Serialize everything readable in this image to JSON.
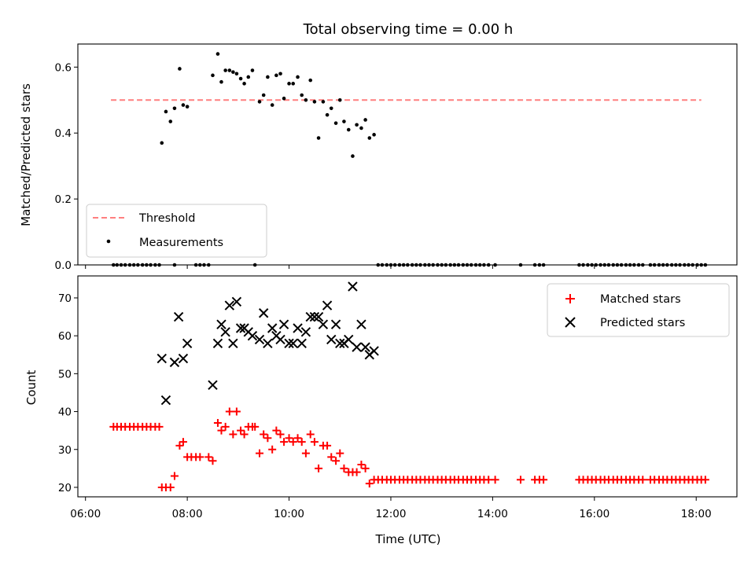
{
  "chart_data": {
    "title": "Total observing time = 0.00 h",
    "xlabel": "Time (UTC)",
    "x_unit": "hours UTC",
    "xlim": [
      5.85,
      18.8
    ],
    "xticks": [
      {
        "value": 6,
        "label": "06:00"
      },
      {
        "value": 8,
        "label": "08:00"
      },
      {
        "value": 10,
        "label": "10:00"
      },
      {
        "value": 12,
        "label": "12:00"
      },
      {
        "value": 14,
        "label": "14:00"
      },
      {
        "value": 16,
        "label": "16:00"
      },
      {
        "value": 18,
        "label": "18:00"
      }
    ],
    "panels": [
      {
        "type": "scatter",
        "ylabel": "Matched/Predicted stars",
        "ylim": [
          0,
          0.67
        ],
        "yticks": [
          {
            "value": 0.0,
            "label": "0.0"
          },
          {
            "value": 0.2,
            "label": "0.2"
          },
          {
            "value": 0.4,
            "label": "0.4"
          },
          {
            "value": 0.6,
            "label": "0.6"
          }
        ],
        "legend": {
          "placement": "lower-left",
          "entries": [
            "Threshold",
            "Measurements"
          ]
        },
        "threshold": {
          "name": "Threshold",
          "value": 0.5,
          "x_range": [
            6.5,
            18.1
          ],
          "color": "#ff7f7f"
        },
        "series": [
          {
            "name": "Measurements",
            "color": "#000000",
            "x": [
              7.5,
              7.58,
              7.67,
              7.75,
              7.85,
              7.92,
              8.0,
              8.5,
              8.6,
              8.67,
              8.75,
              8.83,
              8.9,
              8.97,
              9.05,
              9.12,
              9.2,
              9.28,
              9.42,
              9.5,
              9.58,
              9.67,
              9.75,
              9.83,
              9.9,
              10.0,
              10.08,
              10.17,
              10.25,
              10.33,
              10.42,
              10.5,
              10.58,
              10.67,
              10.75,
              10.83,
              10.92,
              11.0,
              11.08,
              11.17,
              11.25,
              11.33,
              11.42,
              11.5,
              11.58,
              11.67,
              6.55,
              6.62,
              6.7,
              6.78,
              6.87,
              6.95,
              7.03,
              7.12,
              7.2,
              7.28,
              7.37,
              7.45,
              7.75,
              8.17,
              8.25,
              8.33,
              8.42,
              9.33,
              11.75,
              11.83,
              11.92,
              12.0,
              12.08,
              12.17,
              12.25,
              12.33,
              12.42,
              12.5,
              12.58,
              12.67,
              12.75,
              12.83,
              12.92,
              13.0,
              13.08,
              13.17,
              13.25,
              13.33,
              13.42,
              13.5,
              13.58,
              13.67,
              13.75,
              13.83,
              13.92,
              14.05,
              14.55,
              14.83,
              14.92,
              15.0,
              15.7,
              15.78,
              15.87,
              15.95,
              16.03,
              16.12,
              16.2,
              16.28,
              16.37,
              16.45,
              16.53,
              16.62,
              16.7,
              16.78,
              16.87,
              16.95,
              17.1,
              17.18,
              17.27,
              17.35,
              17.43,
              17.52,
              17.6,
              17.68,
              17.77,
              17.85,
              17.93,
              18.02,
              18.1,
              18.18
            ],
            "y": [
              0.37,
              0.465,
              0.435,
              0.475,
              0.595,
              0.485,
              0.48,
              0.575,
              0.64,
              0.555,
              0.59,
              0.59,
              0.585,
              0.58,
              0.565,
              0.55,
              0.57,
              0.59,
              0.495,
              0.515,
              0.57,
              0.485,
              0.575,
              0.58,
              0.505,
              0.55,
              0.55,
              0.57,
              0.515,
              0.5,
              0.56,
              0.495,
              0.385,
              0.495,
              0.455,
              0.475,
              0.43,
              0.5,
              0.435,
              0.41,
              0.33,
              0.425,
              0.415,
              0.44,
              0.385,
              0.395,
              0,
              0,
              0,
              0,
              0,
              0,
              0,
              0,
              0,
              0,
              0,
              0,
              0,
              0,
              0,
              0,
              0,
              0,
              0,
              0,
              0,
              0,
              0,
              0,
              0,
              0,
              0,
              0,
              0,
              0,
              0,
              0,
              0,
              0,
              0,
              0,
              0,
              0,
              0,
              0,
              0,
              0,
              0,
              0,
              0,
              0,
              0,
              0,
              0,
              0,
              0,
              0,
              0,
              0,
              0,
              0,
              0,
              0,
              0,
              0,
              0,
              0,
              0,
              0,
              0,
              0,
              0,
              0,
              0,
              0,
              0,
              0,
              0,
              0,
              0,
              0,
              0,
              0,
              0,
              0
            ]
          }
        ]
      },
      {
        "type": "scatter",
        "ylabel": "Count",
        "ylim": [
          17.5,
          75.8
        ],
        "yticks": [
          {
            "value": 20,
            "label": "20"
          },
          {
            "value": 30,
            "label": "30"
          },
          {
            "value": 40,
            "label": "40"
          },
          {
            "value": 50,
            "label": "50"
          },
          {
            "value": 60,
            "label": "60"
          },
          {
            "value": 70,
            "label": "70"
          }
        ],
        "legend": {
          "placement": "upper-right",
          "entries": [
            "Matched stars",
            "Predicted stars"
          ]
        },
        "series": [
          {
            "name": "Matched stars",
            "marker": "plus",
            "color": "#ff0000",
            "x": [
              6.55,
              6.62,
              6.7,
              6.78,
              6.87,
              6.95,
              7.03,
              7.12,
              7.2,
              7.28,
              7.37,
              7.45,
              7.5,
              7.58,
              7.67,
              7.75,
              7.85,
              7.92,
              8.0,
              8.08,
              8.17,
              8.25,
              8.42,
              8.5,
              8.6,
              8.67,
              8.75,
              8.83,
              8.9,
              8.97,
              9.05,
              9.12,
              9.2,
              9.28,
              9.33,
              9.42,
              9.5,
              9.58,
              9.67,
              9.75,
              9.83,
              9.9,
              10.0,
              10.08,
              10.17,
              10.25,
              10.33,
              10.42,
              10.5,
              10.58,
              10.67,
              10.75,
              10.83,
              10.92,
              11.0,
              11.08,
              11.17,
              11.25,
              11.33,
              11.42,
              11.5,
              11.58,
              11.67,
              11.75,
              11.83,
              11.92,
              12.0,
              12.08,
              12.17,
              12.25,
              12.33,
              12.42,
              12.5,
              12.58,
              12.67,
              12.75,
              12.83,
              12.92,
              13.0,
              13.08,
              13.17,
              13.25,
              13.33,
              13.42,
              13.5,
              13.58,
              13.67,
              13.75,
              13.83,
              13.92,
              14.05,
              14.55,
              14.83,
              14.92,
              15.0,
              15.7,
              15.78,
              15.87,
              15.95,
              16.03,
              16.12,
              16.2,
              16.28,
              16.37,
              16.45,
              16.53,
              16.62,
              16.7,
              16.78,
              16.87,
              16.95,
              17.1,
              17.18,
              17.27,
              17.35,
              17.43,
              17.52,
              17.6,
              17.68,
              17.77,
              17.85,
              17.93,
              18.02,
              18.1,
              18.18
            ],
            "y": [
              36,
              36,
              36,
              36,
              36,
              36,
              36,
              36,
              36,
              36,
              36,
              36,
              20,
              20,
              20,
              23,
              31,
              32,
              28,
              28,
              28,
              28,
              28,
              27,
              37,
              35,
              36,
              40,
              34,
              40,
              35,
              34,
              36,
              36,
              36,
              29,
              34,
              33,
              30,
              35,
              34,
              32,
              33,
              32,
              33,
              32,
              29,
              34,
              32,
              25,
              31,
              31,
              28,
              27,
              29,
              25,
              24,
              24,
              24,
              26,
              25,
              21,
              22,
              22,
              22,
              22,
              22,
              22,
              22,
              22,
              22,
              22,
              22,
              22,
              22,
              22,
              22,
              22,
              22,
              22,
              22,
              22,
              22,
              22,
              22,
              22,
              22,
              22,
              22,
              22,
              22,
              22,
              22,
              22,
              22,
              22,
              22,
              22,
              22,
              22,
              22,
              22,
              22,
              22,
              22,
              22,
              22,
              22,
              22,
              22,
              22,
              22,
              22,
              22,
              22,
              22,
              22,
              22,
              22,
              22,
              22,
              22,
              22,
              22,
              22
            ]
          },
          {
            "name": "Predicted stars",
            "marker": "x",
            "color": "#000000",
            "x": [
              7.5,
              7.58,
              7.75,
              7.83,
              7.92,
              8.0,
              8.5,
              8.6,
              8.67,
              8.75,
              8.83,
              8.9,
              8.97,
              9.05,
              9.12,
              9.2,
              9.28,
              9.42,
              9.5,
              9.58,
              9.67,
              9.75,
              9.83,
              9.9,
              10.0,
              10.08,
              10.17,
              10.25,
              10.33,
              10.42,
              10.5,
              10.58,
              10.67,
              10.75,
              10.83,
              10.92,
              11.0,
              11.08,
              11.17,
              11.25,
              11.33,
              11.42,
              11.5,
              11.58,
              11.67
            ],
            "y": [
              54,
              43,
              53,
              65,
              54,
              58,
              47,
              58,
              63,
              61,
              68,
              58,
              69,
              62,
              62,
              61,
              60,
              59,
              66,
              58,
              62,
              60,
              59,
              63,
              58,
              58,
              62,
              58,
              61,
              65,
              65,
              65,
              63,
              68,
              59,
              63,
              58,
              58,
              59,
              73,
              57,
              63,
              57,
              55,
              56
            ]
          }
        ]
      }
    ]
  }
}
